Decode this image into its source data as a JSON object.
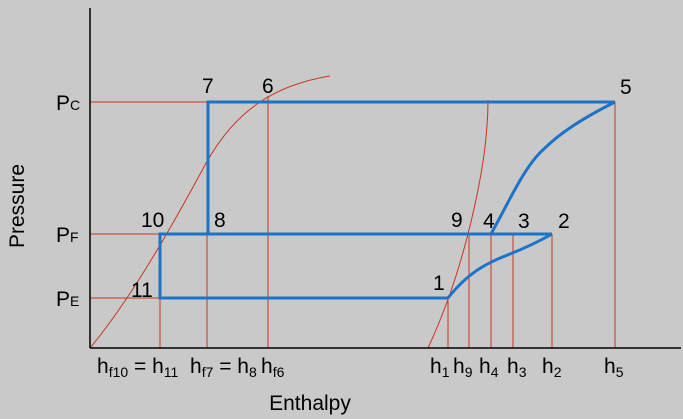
{
  "axes": {
    "y_label": "Pressure",
    "x_label": "Enthalpy"
  },
  "pressure_levels": [
    {
      "symbol": "P",
      "subscript": "C"
    },
    {
      "symbol": "P",
      "subscript": "F"
    },
    {
      "symbol": "P",
      "subscript": "E"
    }
  ],
  "state_points": [
    "1",
    "2",
    "3",
    "4",
    "5",
    "6",
    "7",
    "8",
    "9",
    "10",
    "11"
  ],
  "enthalpy_labels": [
    {
      "parts": [
        {
          "text": "h",
          "subscript": "f10"
        },
        {
          "text": " = h",
          "subscript": "11"
        }
      ]
    },
    {
      "parts": [
        {
          "text": "h",
          "subscript": "f7"
        },
        {
          "text": " = h",
          "subscript": "8"
        }
      ]
    },
    {
      "parts": [
        {
          "text": "h",
          "subscript": "f6"
        }
      ]
    },
    {
      "parts": [
        {
          "text": "h",
          "subscript": "1"
        }
      ]
    },
    {
      "parts": [
        {
          "text": "h",
          "subscript": "9"
        }
      ]
    },
    {
      "parts": [
        {
          "text": "h",
          "subscript": "4"
        }
      ]
    },
    {
      "parts": [
        {
          "text": "h",
          "subscript": "3"
        }
      ]
    },
    {
      "parts": [
        {
          "text": "h",
          "subscript": "2"
        }
      ]
    },
    {
      "parts": [
        {
          "text": "h",
          "subscript": "5"
        }
      ]
    }
  ]
}
